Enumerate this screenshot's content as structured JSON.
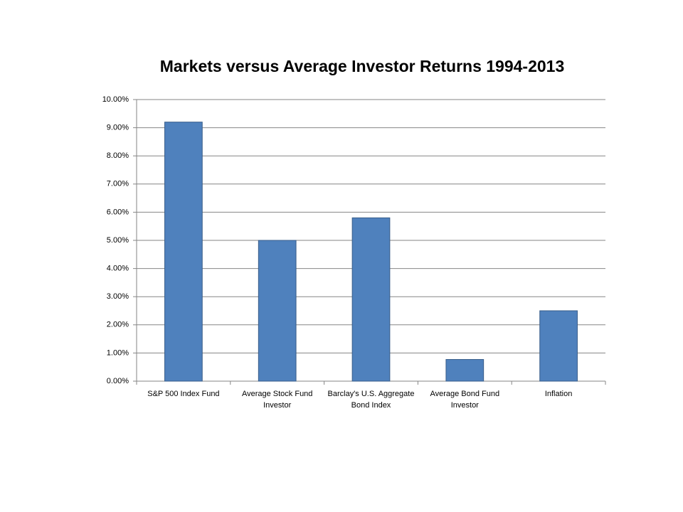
{
  "chart_data": {
    "type": "bar",
    "title": "Markets versus Average Investor Returns 1994-2013",
    "categories": [
      "S&P 500 Index Fund",
      "Average Stock Fund Investor",
      "Barclay's U.S. Aggregate Bond Index",
      "Average Bond Fund Investor",
      "Inflation"
    ],
    "values": [
      9.2,
      5.0,
      5.8,
      0.77,
      2.5
    ],
    "color": "#4f81bd",
    "ylim": [
      0,
      10
    ],
    "yticks": [
      {
        "value": 0,
        "label": "0.00%"
      },
      {
        "value": 1,
        "label": "1.00%"
      },
      {
        "value": 2,
        "label": "2.00%"
      },
      {
        "value": 3,
        "label": "3.00%"
      },
      {
        "value": 4,
        "label": "4.00%"
      },
      {
        "value": 5,
        "label": "5.00%"
      },
      {
        "value": 6,
        "label": "6.00%"
      },
      {
        "value": 7,
        "label": "7.00%"
      },
      {
        "value": 8,
        "label": "8.00%"
      },
      {
        "value": 9,
        "label": "9.00%"
      },
      {
        "value": 10,
        "label": "10.00%"
      }
    ],
    "grid": true
  }
}
